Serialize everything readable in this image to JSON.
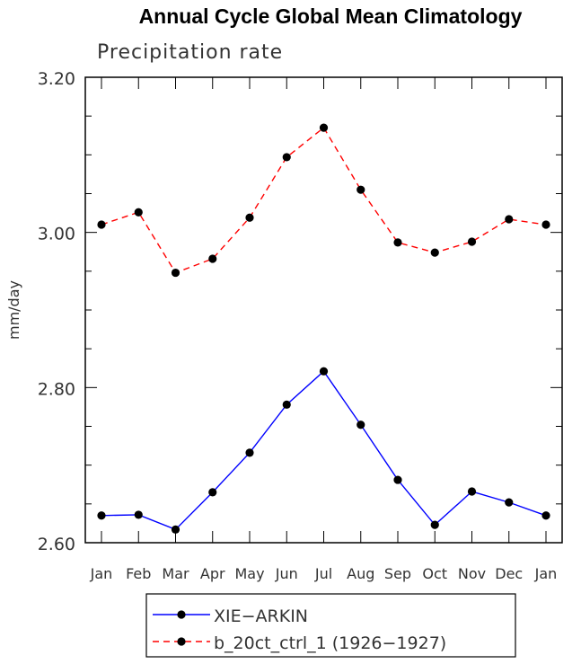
{
  "chart_data": {
    "type": "line",
    "title": "Annual Cycle Global Mean Climatology",
    "subtitle": "Precipitation rate",
    "xlabel": "",
    "ylabel": "mm/day",
    "categories": [
      "Jan",
      "Feb",
      "Mar",
      "Apr",
      "May",
      "Jun",
      "Jul",
      "Aug",
      "Sep",
      "Oct",
      "Nov",
      "Dec",
      "Jan"
    ],
    "ylim": [
      2.6,
      3.2
    ],
    "y_ticks": [
      "2.60",
      "2.80",
      "3.00",
      "3.20"
    ],
    "series": [
      {
        "name": "XIE−ARKIN",
        "color": "#0000ff",
        "line_style": "solid",
        "values": [
          2.635,
          2.636,
          2.617,
          2.665,
          2.716,
          2.778,
          2.821,
          2.752,
          2.681,
          2.623,
          2.666,
          2.652,
          2.635
        ]
      },
      {
        "name": "b_20ct_ctrl_1 (1926−1927)",
        "color": "#ff0000",
        "line_style": "dashed",
        "values": [
          3.01,
          3.026,
          2.948,
          2.966,
          3.019,
          3.097,
          3.135,
          3.055,
          2.987,
          2.974,
          2.988,
          3.017,
          3.01
        ]
      }
    ],
    "grid": false,
    "legend_position": "bottom"
  }
}
